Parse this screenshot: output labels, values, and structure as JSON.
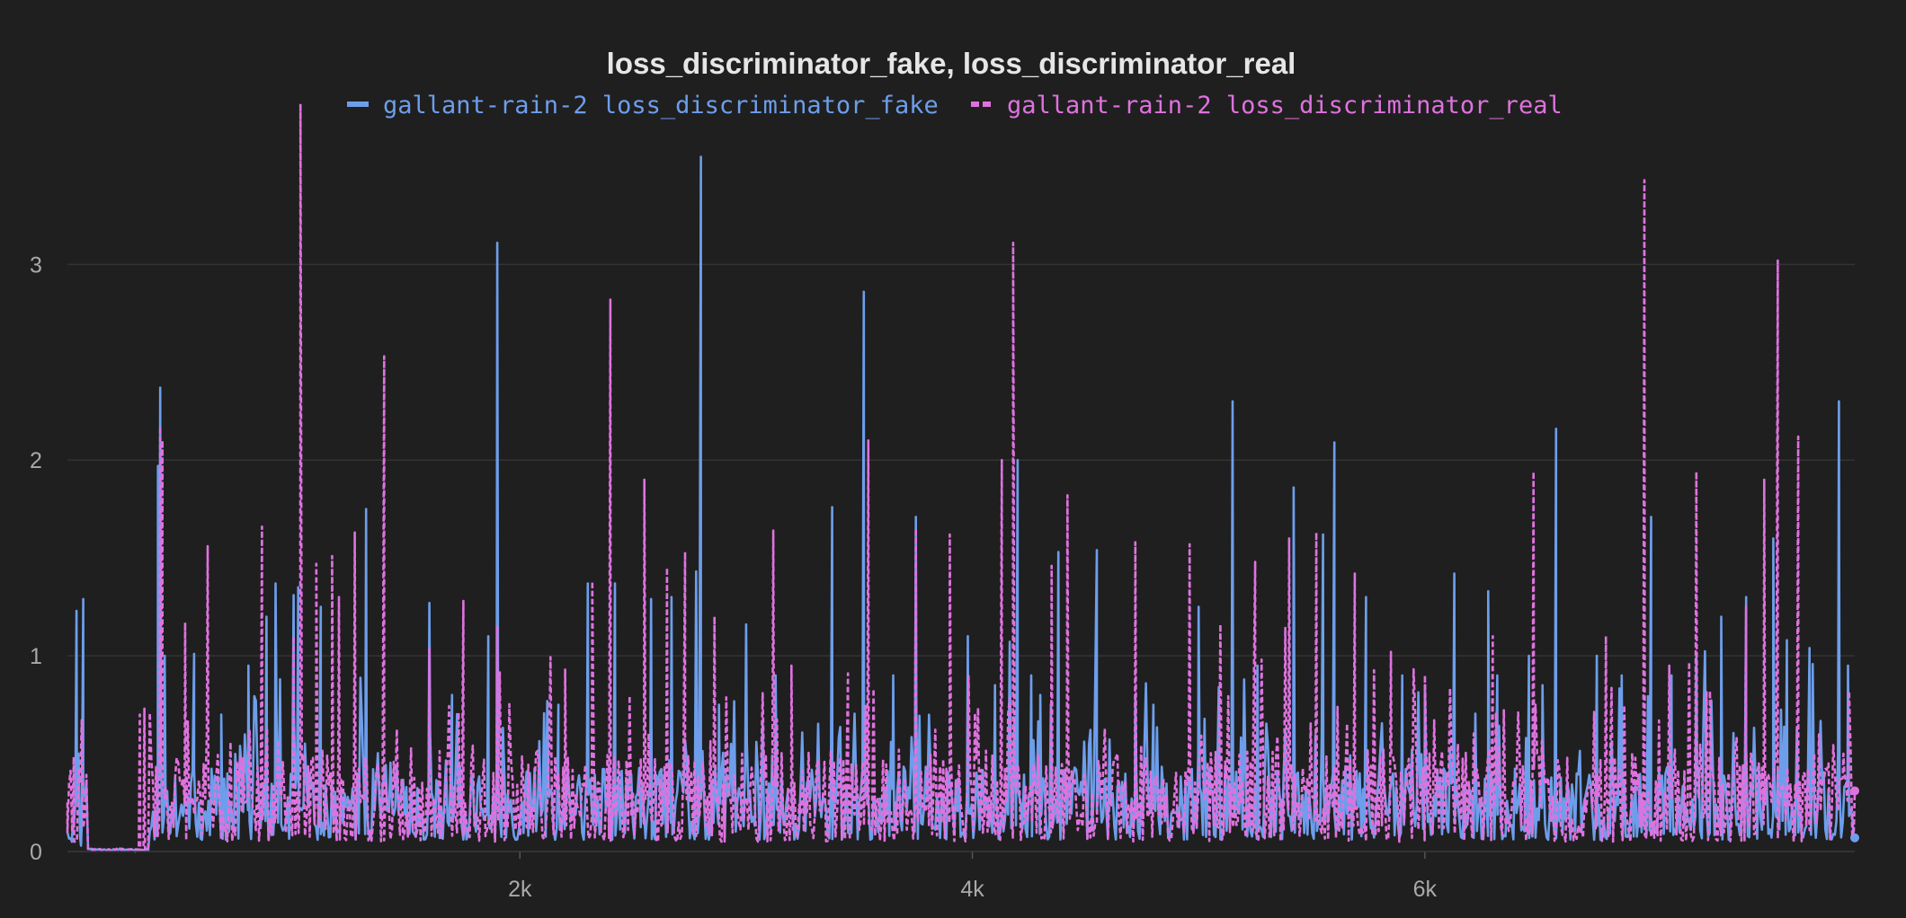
{
  "colors": {
    "background": "#1f1f1f",
    "grid": "#333333",
    "tick_text": "#a9a9a9",
    "title_text": "#e6e6e6",
    "fake": "#6d9eeb",
    "real": "#df72df"
  },
  "chart_data": {
    "type": "line",
    "title": "loss_discriminator_fake, loss_discriminator_real",
    "xlabel": "",
    "ylabel": "",
    "xlim": [
      0,
      7900
    ],
    "ylim": [
      0,
      3.8
    ],
    "grid": true,
    "legend_position": "top-center",
    "x_ticks": [
      {
        "value": 2000,
        "label": "2k"
      },
      {
        "value": 4000,
        "label": "4k"
      },
      {
        "value": 6000,
        "label": "6k"
      }
    ],
    "y_ticks": [
      {
        "value": 0,
        "label": "0"
      },
      {
        "value": 1,
        "label": "1"
      },
      {
        "value": 2,
        "label": "2"
      },
      {
        "value": 3,
        "label": "3"
      }
    ],
    "series": [
      {
        "name": "gallant-rain-2 loss_discriminator_fake",
        "style": "solid",
        "color": "#6d9eeb",
        "baseline": [
          0.06,
          0.28
        ],
        "noise_seed": 11,
        "x": [
          20,
          40,
          60,
          70,
          300,
          390,
          400,
          410,
          430,
          560,
          680,
          800,
          880,
          920,
          940,
          1000,
          1020,
          1120,
          1320,
          1600,
          1700,
          1860,
          1900,
          2170,
          2300,
          2420,
          2580,
          2670,
          2800,
          2880,
          3000,
          3130,
          3380,
          3520,
          3650,
          3750,
          3980,
          4100,
          4200,
          4260,
          4300,
          4380,
          4550,
          4720,
          4800,
          5000,
          5150,
          5260,
          5420,
          5550,
          5600,
          5740,
          5900,
          6000,
          6130,
          6280,
          6320,
          6460,
          6520,
          6580,
          6760,
          6870,
          7000,
          7090,
          7200,
          7310,
          7420,
          7540,
          7600,
          7700,
          7830,
          7870,
          7900
        ],
        "y": [
          0.05,
          1.23,
          0.03,
          1.29,
          0.0,
          0.2,
          1.97,
          2.37,
          1.0,
          1.01,
          0.7,
          0.95,
          1.2,
          1.37,
          0.88,
          1.31,
          1.35,
          1.25,
          1.75,
          1.27,
          0.8,
          1.1,
          3.11,
          0.75,
          1.37,
          1.37,
          1.29,
          1.3,
          3.55,
          0.75,
          1.16,
          0.9,
          1.76,
          2.86,
          0.9,
          1.71,
          1.1,
          0.85,
          2.0,
          0.9,
          0.8,
          1.53,
          1.54,
          0.8,
          0.75,
          1.25,
          2.3,
          0.95,
          1.86,
          1.62,
          2.09,
          1.3,
          0.9,
          0.85,
          1.42,
          1.33,
          0.9,
          1.0,
          0.85,
          2.16,
          1.0,
          0.9,
          1.71,
          0.9,
          1.0,
          1.2,
          1.3,
          1.6,
          1.08,
          1.04,
          2.3,
          0.95,
          0.07
        ]
      },
      {
        "name": "gallant-rain-2 loss_discriminator_real",
        "style": "dashed",
        "color": "#df72df",
        "baseline": [
          0.05,
          0.33
        ],
        "noise_seed": 29,
        "x": [
          0,
          30,
          320,
          340,
          410,
          420,
          520,
          620,
          860,
          1000,
          1030,
          1100,
          1170,
          1200,
          1270,
          1400,
          1600,
          1750,
          1900,
          2200,
          2320,
          2400,
          2550,
          2650,
          2730,
          2860,
          3120,
          3200,
          3450,
          3540,
          3750,
          3900,
          4130,
          4180,
          4350,
          4420,
          4720,
          4960,
          5250,
          5400,
          5520,
          5690,
          5850,
          6000,
          6300,
          6480,
          6800,
          6970,
          7080,
          7200,
          7260,
          7420,
          7500,
          7560,
          7650,
          7850,
          7900
        ],
        "y": [
          0.25,
          0.05,
          0.7,
          0.73,
          2.17,
          2.1,
          1.17,
          1.56,
          1.66,
          1.1,
          3.82,
          1.47,
          1.51,
          1.3,
          1.63,
          2.53,
          1.04,
          1.28,
          1.15,
          0.93,
          1.38,
          2.82,
          1.9,
          1.45,
          1.53,
          1.2,
          1.64,
          0.95,
          0.91,
          2.1,
          1.65,
          1.62,
          2.0,
          3.11,
          1.46,
          1.82,
          1.58,
          1.57,
          1.48,
          1.6,
          1.63,
          1.42,
          1.02,
          0.9,
          1.1,
          1.94,
          1.1,
          3.43,
          0.95,
          1.94,
          0.82,
          1.25,
          1.9,
          3.02,
          2.12,
          0.5,
          0.31
        ]
      }
    ]
  }
}
